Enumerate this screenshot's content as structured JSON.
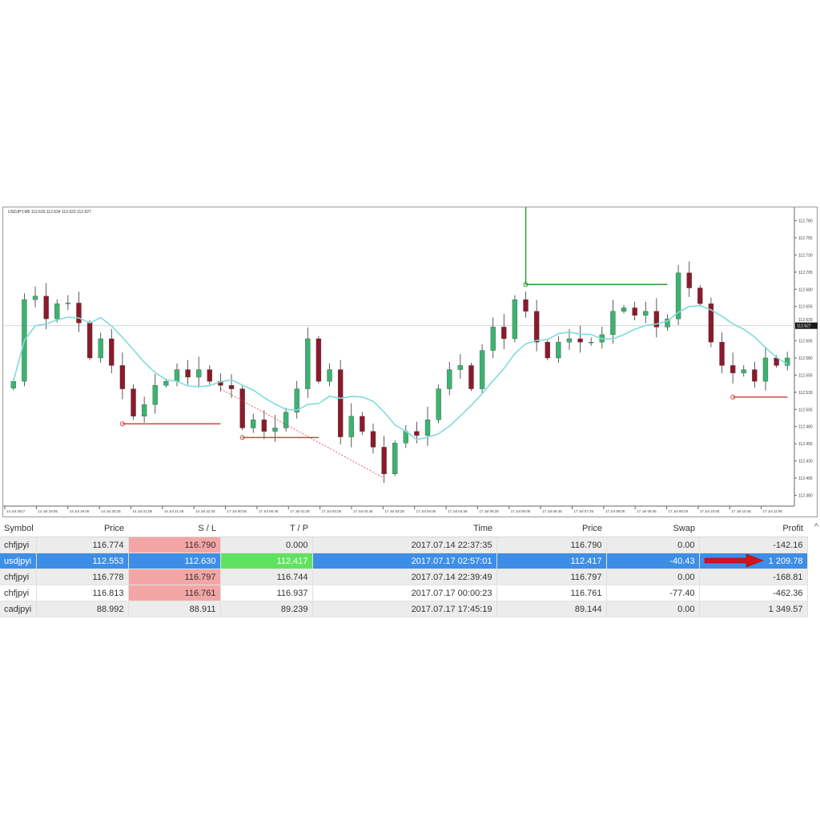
{
  "chart": {
    "title": "USDJPY,M5  112.633 112.634 112.623 112.627",
    "current_price_label": "112.627",
    "colors": {
      "bull": "#3cb371",
      "bear": "#8b1a2b",
      "ma": "#7fdcd8",
      "sl_line": "#e04040",
      "tp_line": "#2e9a2e",
      "price_box": "#1a1a1a"
    }
  },
  "chart_data": {
    "type": "candlestick",
    "y_ticks": [
      "112.780",
      "112.755",
      "112.730",
      "112.705",
      "112.680",
      "112.655",
      "112.630",
      "112.605",
      "112.580",
      "112.555",
      "112.530",
      "112.505",
      "112.480",
      "112.455",
      "112.430",
      "112.405",
      "112.380"
    ],
    "ylim": [
      112.37,
      112.79
    ],
    "x_ticks": [
      "14 Jul 2017",
      "14 Jul 19:05",
      "14 Jul 19:45",
      "14 Jul 20:25",
      "14 Jul 21:05",
      "14 Jul 21:45",
      "14 Jul 22:25",
      "17 Jul 00:05",
      "17 Jul 00:45",
      "17 Jul 01:25",
      "17 Jul 02:05",
      "17 Jul 02:45",
      "17 Jul 03:25",
      "17 Jul 04:05",
      "17 Jul 04:45",
      "17 Jul 05:25",
      "17 Jul 06:05",
      "17 Jul 06:45",
      "17 Jul 07:25",
      "17 Jul 08:05",
      "17 Jul 08:45",
      "17 Jul 09:25",
      "17 Jul 10:05",
      "17 Jul 10:45",
      "17 Jul 11:05"
    ],
    "closes": [
      112.546,
      112.665,
      112.67,
      112.637,
      112.659,
      112.66,
      112.631,
      112.58,
      112.608,
      112.569,
      112.535,
      112.495,
      112.512,
      112.54,
      112.546,
      112.563,
      112.552,
      112.563,
      112.546,
      112.54,
      112.535,
      112.478,
      112.49,
      112.473,
      112.478,
      112.501,
      112.535,
      112.608,
      112.546,
      112.563,
      112.465,
      112.495,
      112.473,
      112.45,
      112.411,
      112.456,
      112.473,
      112.467,
      112.49,
      112.535,
      112.563,
      112.569,
      112.535,
      112.591,
      112.625,
      112.608,
      112.665,
      112.648,
      112.603,
      112.58,
      112.603,
      112.608,
      112.603,
      112.603,
      112.614,
      112.648,
      112.653,
      112.642,
      112.648,
      112.625,
      112.637,
      112.704,
      112.682,
      112.659,
      112.603,
      112.569,
      112.558,
      112.563,
      112.546,
      112.58,
      112.569,
      112.58
    ],
    "levels": [
      {
        "kind": "sl",
        "price": 112.484,
        "from": 10,
        "to": 19
      },
      {
        "kind": "sl",
        "price": 112.464,
        "from": 21,
        "to": 28
      },
      {
        "kind": "sl",
        "price": 112.523,
        "from": 66,
        "to": 71
      },
      {
        "kind": "tp",
        "price": 112.687,
        "from": 47,
        "to": 60
      }
    ]
  },
  "table": {
    "headers": [
      "Symbol",
      "Price",
      "S / L",
      "T / P",
      "",
      "Time",
      "Price",
      "Swap",
      "Profit"
    ],
    "rows": [
      {
        "symbol": "chfjpyi",
        "price": "116.774",
        "sl": "116.790",
        "tp": "0.000",
        "time": "2017.07.14 22:37:35",
        "price2": "116.790",
        "swap": "0.00",
        "profit": "-142.16"
      },
      {
        "symbol": "usdjpyi",
        "price": "112.553",
        "sl": "112.630",
        "tp": "112.417",
        "time": "2017.07.17 02:57:01",
        "price2": "112.417",
        "swap": "-40.43",
        "profit": "1 209.78"
      },
      {
        "symbol": "chfjpyi",
        "price": "116.778",
        "sl": "116.797",
        "tp": "116.744",
        "time": "2017.07.14 22:39:49",
        "price2": "116.797",
        "swap": "0.00",
        "profit": "-168.81"
      },
      {
        "symbol": "chfjpyi",
        "price": "116.813",
        "sl": "116.761",
        "tp": "116.937",
        "time": "2017.07.17 00:00:23",
        "price2": "116.761",
        "swap": "-77.40",
        "profit": "-462.36"
      },
      {
        "symbol": "cadjpyi",
        "price": "88.992",
        "sl": "88.911",
        "tp": "89.239",
        "time": "2017.07.17 17:45:19",
        "price2": "89.144",
        "swap": "0.00",
        "profit": "1 349.57"
      }
    ],
    "scroll_up": "^",
    "arrow_color": "#d0141a"
  }
}
